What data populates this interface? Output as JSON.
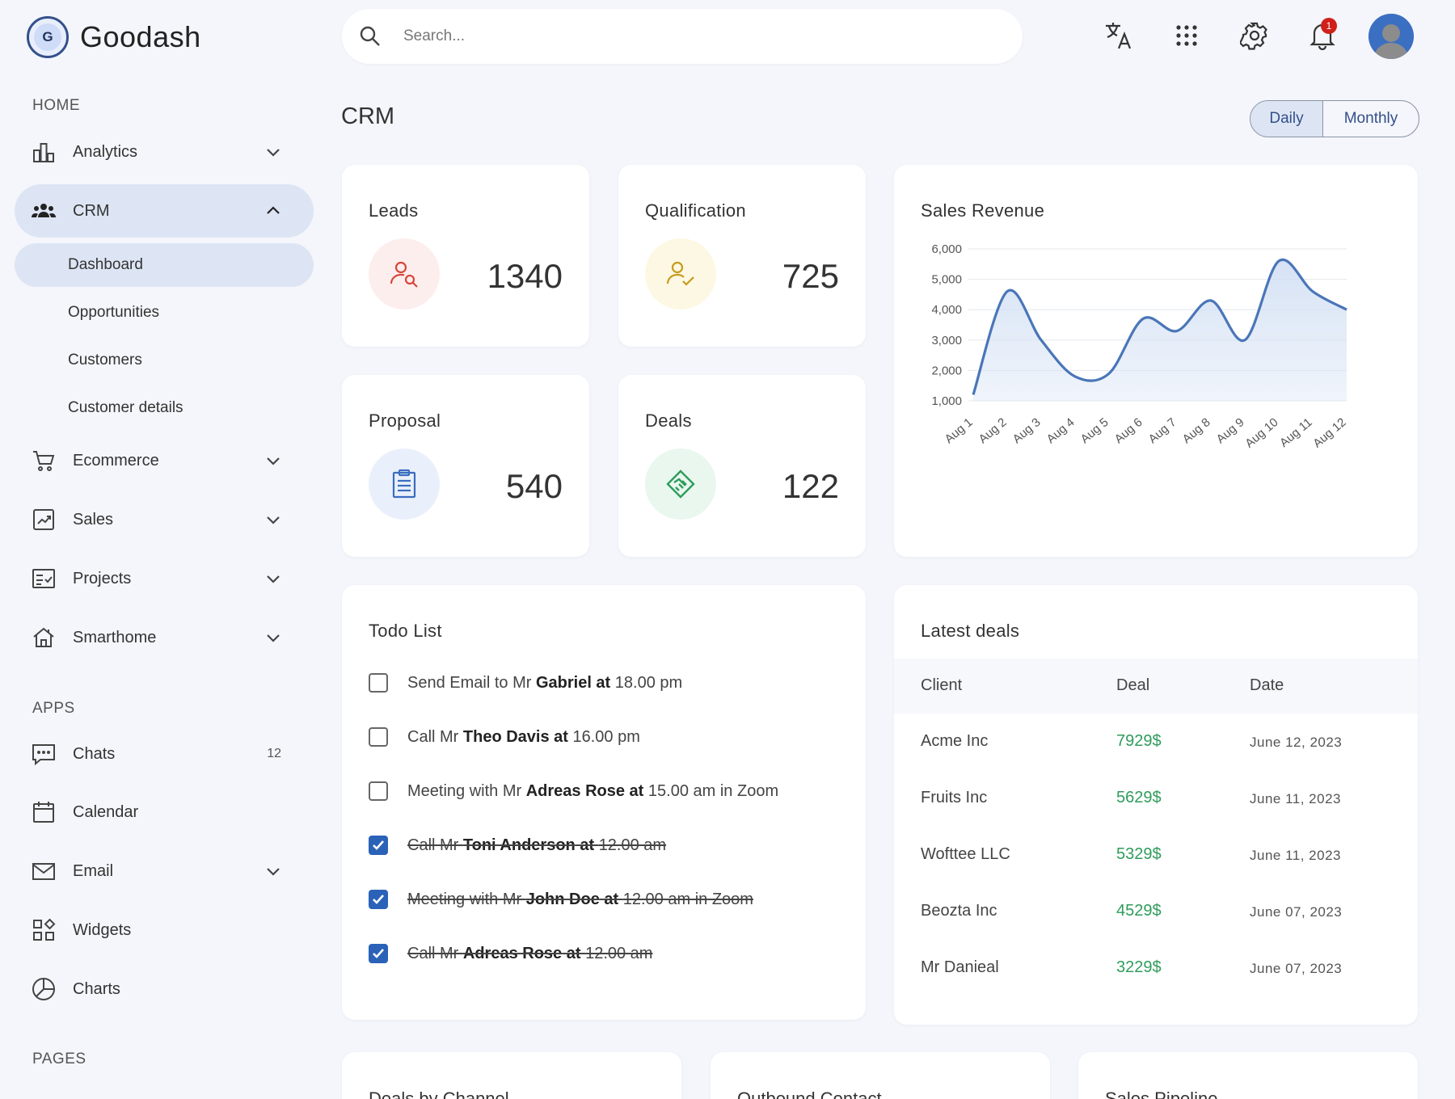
{
  "app": {
    "name": "Goodash",
    "logo_letter": "G"
  },
  "sidebar": {
    "sections": {
      "home": "HOME",
      "apps": "APPS",
      "pages": "PAGES"
    },
    "home_items": [
      {
        "label": "Analytics",
        "icon": "bar-chart-icon"
      },
      {
        "label": "CRM",
        "icon": "group-icon"
      }
    ],
    "crm_sub_items": [
      "Dashboard",
      "Opportunities",
      "Customers",
      "Customer details"
    ],
    "more_items": [
      {
        "label": "Ecommerce",
        "icon": "cart-icon"
      },
      {
        "label": "Sales",
        "icon": "trend-icon"
      },
      {
        "label": "Projects",
        "icon": "checklist-icon"
      },
      {
        "label": "Smarthome",
        "icon": "home-icon"
      }
    ],
    "apps_items": [
      {
        "label": "Chats",
        "icon": "chat-icon",
        "badge": "12"
      },
      {
        "label": "Calendar",
        "icon": "calendar-icon"
      },
      {
        "label": "Email",
        "icon": "mail-icon"
      },
      {
        "label": "Widgets",
        "icon": "widgets-icon"
      },
      {
        "label": "Charts",
        "icon": "pie-icon"
      }
    ]
  },
  "header": {
    "search_placeholder": "Search...",
    "notification_count": "1"
  },
  "page": {
    "title": "CRM",
    "period_toggle": {
      "daily": "Daily",
      "monthly": "Monthly",
      "selected": "Daily"
    }
  },
  "stats": [
    {
      "title": "Leads",
      "value": "1340",
      "icon": "user-search-icon",
      "color": "#d9453b",
      "bg": "#fdeeee"
    },
    {
      "title": "Qualification",
      "value": "725",
      "icon": "user-check-icon",
      "color": "#c79a1a",
      "bg": "#fdf8e3"
    },
    {
      "title": "Proposal",
      "value": "540",
      "icon": "clipboard-icon",
      "color": "#3a6dc0",
      "bg": "#eaf0fb"
    },
    {
      "title": "Deals",
      "value": "122",
      "icon": "handshake-icon",
      "color": "#2f9c5c",
      "bg": "#eaf7ef"
    }
  ],
  "sales_revenue": {
    "title": "Sales Revenue",
    "chart_data": {
      "type": "area",
      "x": [
        "Aug 1",
        "Aug 2",
        "Aug 3",
        "Aug 4",
        "Aug 5",
        "Aug 6",
        "Aug 7",
        "Aug 8",
        "Aug 9",
        "Aug 10",
        "Aug 11",
        "Aug 12"
      ],
      "series": [
        {
          "values": [
            1200,
            4600,
            3000,
            1800,
            1900,
            3700,
            3300,
            4300,
            3000,
            5600,
            4600,
            4000
          ]
        }
      ],
      "yticks": [
        "1,000",
        "2,000",
        "3,000",
        "4,000",
        "5,000",
        "6,000"
      ],
      "ylim": [
        1000,
        6000
      ],
      "line_color": "#4a76b8",
      "fill_color": "#d4e1f4",
      "grid": true
    }
  },
  "todo": {
    "title": "Todo List",
    "items": [
      {
        "pre": "Send Email to Mr ",
        "bold": "Gabriel",
        "mid": " at ",
        "post": "18.00 pm",
        "done": false
      },
      {
        "pre": "Call Mr ",
        "bold": "Theo Davis",
        "mid": " at ",
        "post": "16.00 pm",
        "done": false
      },
      {
        "pre": "Meeting with Mr ",
        "bold": "Adreas Rose",
        "mid": " at ",
        "post": "15.00 am in Zoom",
        "done": false
      },
      {
        "pre": "Call Mr ",
        "bold": "Toni Anderson",
        "mid": " at ",
        "post": "12.00 am",
        "done": true
      },
      {
        "pre": "Meeting with Mr ",
        "bold": "John Doe",
        "mid": " at ",
        "post": "12.00 am in Zoom",
        "done": true
      },
      {
        "pre": "Call Mr ",
        "bold": "Adreas Rose",
        "mid": " at ",
        "post": "12.00 am",
        "done": true
      }
    ]
  },
  "latest_deals": {
    "title": "Latest deals",
    "columns": [
      "Client",
      "Deal",
      "Date"
    ],
    "rows": [
      {
        "client": "Acme Inc",
        "deal": "7929$",
        "date": "June 12, 2023"
      },
      {
        "client": "Fruits Inc",
        "deal": "5629$",
        "date": "June 11, 2023"
      },
      {
        "client": "Wofttee LLC",
        "deal": "5329$",
        "date": "June 11, 2023"
      },
      {
        "client": "Beozta Inc",
        "deal": "4529$",
        "date": "June 07, 2023"
      },
      {
        "client": "Mr Danieal",
        "deal": "3229$",
        "date": "June 07, 2023"
      }
    ]
  },
  "bottom_cards": [
    "Deals by Channel",
    "Outbound Contact",
    "Sales Pipeline"
  ]
}
